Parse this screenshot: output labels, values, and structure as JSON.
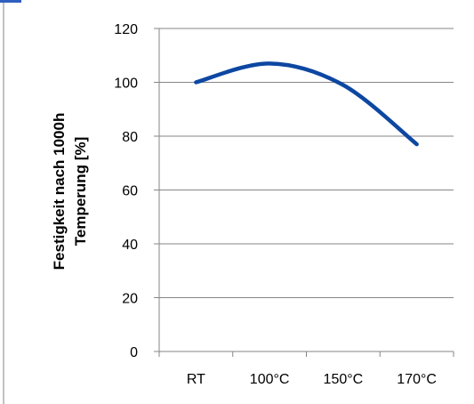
{
  "chart_data": {
    "type": "line",
    "categories": [
      "RT",
      "100°C",
      "150°C",
      "170°C"
    ],
    "series": [
      {
        "values": [
          100,
          107,
          99,
          77
        ]
      }
    ],
    "title": "",
    "xlabel": "",
    "ylabel_lines": [
      "Festigkeit nach 1000h",
      "Temperung [%]"
    ],
    "ylim": [
      0,
      120
    ],
    "yticks": [
      0,
      20,
      40,
      60,
      80,
      100,
      120
    ],
    "grid": true,
    "smooth": true,
    "colors": {
      "line": "#0d47a1",
      "grid": "#868686",
      "axis": "#868686",
      "frame_left": "#868686",
      "frame_top": "#2f5fbf"
    }
  }
}
